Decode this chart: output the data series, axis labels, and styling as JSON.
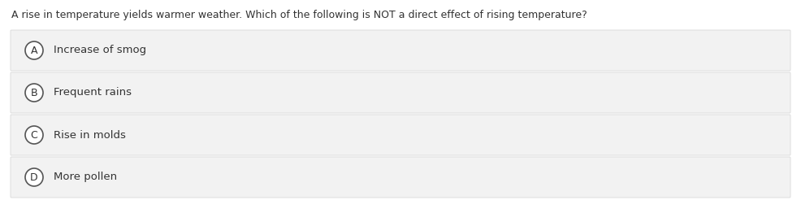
{
  "question": "A rise in temperature yields warmer weather. Which of the following is NOT a direct effect of rising temperature?",
  "options": [
    {
      "label": "A",
      "text": "Increase of smog"
    },
    {
      "label": "B",
      "text": "Frequent rains"
    },
    {
      "label": "C",
      "text": "Rise in molds"
    },
    {
      "label": "D",
      "text": "More pollen"
    }
  ],
  "background_color": "#ffffff",
  "box_color": "#f2f2f2",
  "box_edge_color": "#d8d8d8",
  "text_color": "#333333",
  "circle_edge_color": "#555555",
  "circle_face_color": "#ffffff",
  "question_fontsize": 9.0,
  "option_fontsize": 9.5,
  "label_fontsize": 9.0,
  "fig_width": 9.86,
  "fig_height": 2.46,
  "dpi": 100
}
